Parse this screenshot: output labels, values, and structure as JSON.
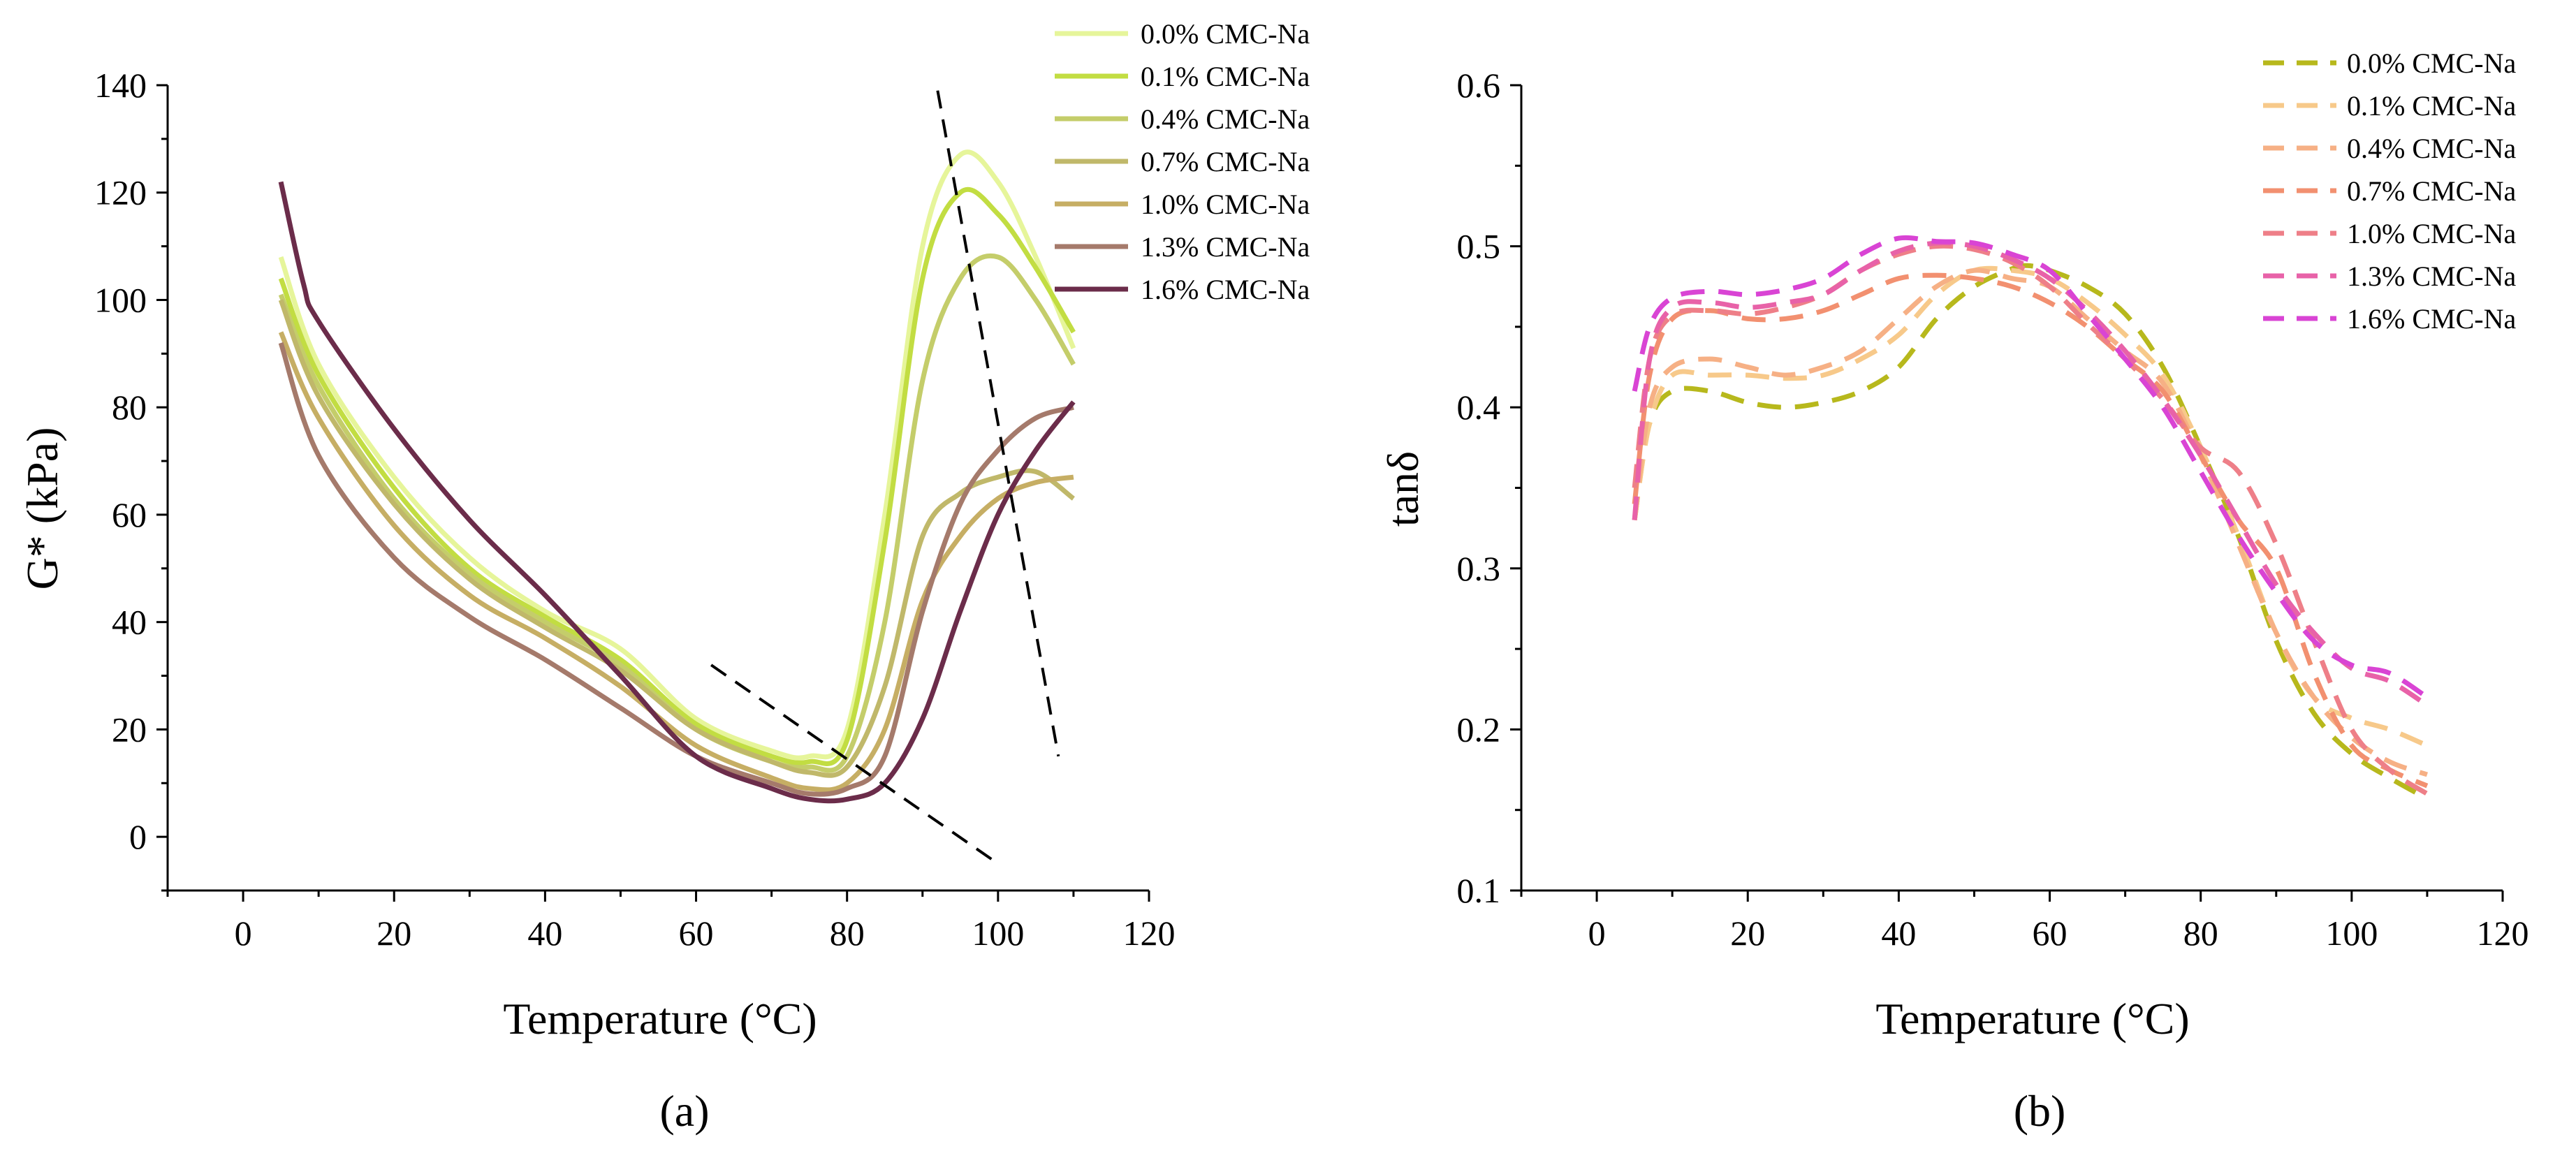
{
  "figure": {
    "panel_a_label": "(a)",
    "panel_b_label": "(b)"
  },
  "chart_data": [
    {
      "type": "line",
      "panel": "(a)",
      "xlabel": "Temperature (°C)",
      "ylabel": "G* (kPa)",
      "xlim": [
        -10,
        120
      ],
      "ylim": [
        -10,
        140
      ],
      "xticks": [
        0,
        20,
        40,
        60,
        80,
        100,
        120
      ],
      "yticks": [
        0,
        20,
        40,
        60,
        80,
        100,
        120,
        140
      ],
      "x_tick_labels": [
        "0",
        "20",
        "40",
        "60",
        "80",
        "100",
        "120"
      ],
      "y_tick_labels": [
        "0",
        "20",
        "40",
        "60",
        "80",
        "100",
        "120",
        "140"
      ],
      "grid": false,
      "legend_position": "top-right",
      "series": [
        {
          "name": "0.0% CMC-Na",
          "color": "#e6f59a",
          "x": [
            5,
            10,
            20,
            30,
            40,
            50,
            60,
            70,
            75,
            80,
            85,
            90,
            95,
            100,
            105,
            110
          ],
          "y": [
            108,
            88,
            67,
            52,
            42,
            35,
            22,
            16,
            15,
            20,
            60,
            110,
            127,
            122,
            108,
            91
          ]
        },
        {
          "name": "0.1% CMC-Na",
          "color": "#c2dd42",
          "x": [
            5,
            10,
            20,
            30,
            40,
            50,
            60,
            70,
            75,
            80,
            85,
            90,
            95,
            100,
            105,
            110
          ],
          "y": [
            104,
            86,
            65,
            50,
            41,
            33,
            21,
            15,
            14,
            18,
            55,
            104,
            120,
            116,
            106,
            94
          ]
        },
        {
          "name": "0.4% CMC-Na",
          "color": "#c4cd6a",
          "x": [
            5,
            10,
            20,
            30,
            40,
            50,
            60,
            70,
            75,
            80,
            85,
            90,
            95,
            100,
            105,
            110
          ],
          "y": [
            101,
            84,
            63,
            49,
            40,
            32,
            20,
            14,
            13,
            15,
            40,
            85,
            104,
            108,
            100,
            88
          ]
        },
        {
          "name": "0.7% CMC-Na",
          "color": "#c0b86a",
          "x": [
            5,
            10,
            20,
            30,
            40,
            50,
            60,
            70,
            75,
            80,
            85,
            90,
            95,
            100,
            105,
            110
          ],
          "y": [
            100,
            82,
            62,
            48,
            39,
            31,
            20,
            14,
            12,
            13,
            28,
            56,
            64,
            67,
            68,
            63
          ]
        },
        {
          "name": "1.0% CMC-Na",
          "color": "#c6ae64",
          "x": [
            5,
            10,
            20,
            30,
            40,
            50,
            60,
            70,
            75,
            80,
            85,
            90,
            95,
            100,
            105,
            110
          ],
          "y": [
            94,
            78,
            58,
            45,
            37,
            28,
            17,
            11,
            9,
            10,
            20,
            44,
            56,
            63,
            66,
            67
          ]
        },
        {
          "name": "1.3% CMC-Na",
          "color": "#a57a6b",
          "x": [
            5,
            10,
            20,
            30,
            40,
            50,
            60,
            70,
            75,
            80,
            85,
            90,
            95,
            100,
            105,
            110
          ],
          "y": [
            92,
            71,
            52,
            41,
            33,
            24,
            15,
            10,
            8,
            9,
            15,
            42,
            62,
            72,
            78,
            80
          ]
        },
        {
          "name": "1.6% CMC-Na",
          "color": "#6b2c4a",
          "x": [
            5,
            8,
            10,
            20,
            30,
            40,
            50,
            60,
            70,
            75,
            80,
            85,
            90,
            95,
            100,
            105,
            110
          ],
          "y": [
            122,
            103,
            96,
            76,
            59,
            45,
            30,
            15,
            9,
            7,
            7,
            10,
            22,
            42,
            60,
            72,
            81
          ]
        }
      ],
      "annotations": [
        {
          "type": "dashed-line",
          "x": [
            62,
            100
          ],
          "y": [
            32,
            -5
          ]
        },
        {
          "type": "dashed-line",
          "x": [
            92,
            108
          ],
          "y": [
            139,
            15
          ]
        }
      ]
    },
    {
      "type": "line",
      "panel": "(b)",
      "xlabel": "Temperature (°C)",
      "ylabel": "tanδ",
      "xlim": [
        -10,
        120
      ],
      "ylim": [
        0.1,
        0.6
      ],
      "xticks": [
        0,
        20,
        40,
        60,
        80,
        100,
        120
      ],
      "yticks": [
        0.1,
        0.2,
        0.3,
        0.4,
        0.5,
        0.6
      ],
      "x_tick_labels": [
        "0",
        "20",
        "40",
        "60",
        "80",
        "100",
        "120"
      ],
      "y_tick_labels": [
        "0.1",
        "0.2",
        "0.3",
        "0.4",
        "0.5",
        "0.6"
      ],
      "grid": false,
      "legend_position": "top-right",
      "series": [
        {
          "name": "0.0% CMC-Na",
          "color": "#b7b81c",
          "x": [
            5,
            7,
            10,
            15,
            20,
            25,
            30,
            35,
            40,
            45,
            50,
            55,
            57,
            60,
            65,
            70,
            75,
            80,
            85,
            90,
            95,
            100,
            105,
            110
          ],
          "y": [
            0.33,
            0.39,
            0.41,
            0.41,
            0.403,
            0.4,
            0.403,
            0.41,
            0.425,
            0.455,
            0.475,
            0.486,
            0.488,
            0.485,
            0.475,
            0.458,
            0.425,
            0.375,
            0.32,
            0.255,
            0.21,
            0.185,
            0.17,
            0.157
          ]
        },
        {
          "name": "0.1% CMC-Na",
          "color": "#f7c98a",
          "x": [
            5,
            7,
            10,
            15,
            20,
            25,
            30,
            35,
            40,
            45,
            50,
            55,
            60,
            65,
            70,
            75,
            80,
            85,
            90,
            95,
            100,
            105,
            110
          ],
          "y": [
            0.33,
            0.39,
            0.42,
            0.42,
            0.42,
            0.418,
            0.42,
            0.43,
            0.445,
            0.47,
            0.485,
            0.485,
            0.48,
            0.465,
            0.445,
            0.42,
            0.375,
            0.32,
            0.26,
            0.22,
            0.207,
            0.2,
            0.19
          ]
        },
        {
          "name": "0.4% CMC-Na",
          "color": "#f6b085",
          "x": [
            5,
            7,
            10,
            15,
            20,
            25,
            30,
            35,
            40,
            45,
            50,
            55,
            60,
            65,
            70,
            75,
            80,
            85,
            90,
            95,
            100,
            105,
            110
          ],
          "y": [
            0.33,
            0.4,
            0.425,
            0.43,
            0.425,
            0.42,
            0.425,
            0.435,
            0.455,
            0.475,
            0.485,
            0.48,
            0.475,
            0.455,
            0.435,
            0.415,
            0.37,
            0.315,
            0.26,
            0.22,
            0.195,
            0.18,
            0.172
          ]
        },
        {
          "name": "0.7% CMC-Na",
          "color": "#f29070",
          "x": [
            5,
            7,
            10,
            15,
            20,
            25,
            30,
            35,
            40,
            45,
            50,
            55,
            60,
            65,
            70,
            75,
            80,
            85,
            90,
            95,
            100,
            105,
            110
          ],
          "y": [
            0.34,
            0.42,
            0.455,
            0.46,
            0.455,
            0.455,
            0.46,
            0.47,
            0.48,
            0.482,
            0.48,
            0.475,
            0.465,
            0.45,
            0.43,
            0.41,
            0.37,
            0.33,
            0.3,
            0.235,
            0.19,
            0.175,
            0.165
          ]
        },
        {
          "name": "1.0% CMC-Na",
          "color": "#ee7f88",
          "x": [
            5,
            7,
            10,
            15,
            20,
            25,
            30,
            35,
            40,
            45,
            50,
            55,
            60,
            65,
            70,
            75,
            80,
            85,
            90,
            95,
            100,
            105,
            110
          ],
          "y": [
            0.35,
            0.43,
            0.457,
            0.46,
            0.458,
            0.462,
            0.47,
            0.485,
            0.495,
            0.5,
            0.498,
            0.49,
            0.475,
            0.452,
            0.43,
            0.405,
            0.375,
            0.36,
            0.315,
            0.255,
            0.2,
            0.175,
            0.16
          ]
        },
        {
          "name": "1.3% CMC-Na",
          "color": "#e862a8",
          "x": [
            5,
            7,
            10,
            15,
            20,
            25,
            30,
            35,
            40,
            45,
            50,
            55,
            60,
            65,
            70,
            75,
            80,
            85,
            90,
            95,
            100,
            105,
            110
          ],
          "y": [
            0.33,
            0.43,
            0.462,
            0.465,
            0.462,
            0.465,
            0.47,
            0.485,
            0.497,
            0.502,
            0.5,
            0.492,
            0.48,
            0.46,
            0.435,
            0.405,
            0.37,
            0.33,
            0.29,
            0.26,
            0.238,
            0.23,
            0.215
          ]
        },
        {
          "name": "1.6% CMC-Na",
          "color": "#d944d4",
          "x": [
            5,
            7,
            10,
            15,
            20,
            25,
            30,
            35,
            40,
            45,
            50,
            55,
            60,
            65,
            70,
            75,
            80,
            85,
            90,
            95,
            100,
            105,
            110
          ],
          "y": [
            0.41,
            0.45,
            0.468,
            0.472,
            0.47,
            0.473,
            0.48,
            0.495,
            0.505,
            0.503,
            0.502,
            0.495,
            0.485,
            0.458,
            0.43,
            0.4,
            0.36,
            0.32,
            0.285,
            0.255,
            0.24,
            0.235,
            0.22
          ]
        }
      ]
    }
  ]
}
